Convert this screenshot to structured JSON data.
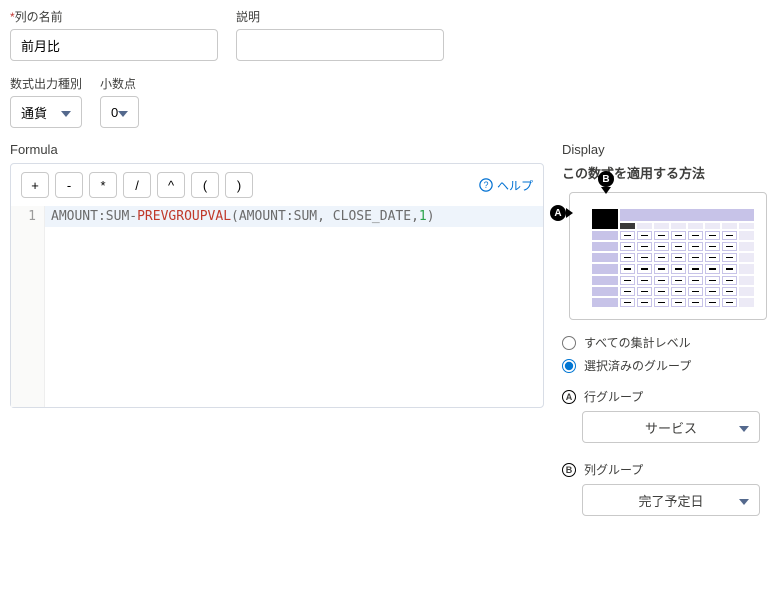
{
  "fields": {
    "colName": {
      "label": "列の名前",
      "required": true,
      "value": "前月比"
    },
    "description": {
      "label": "説明",
      "value": ""
    },
    "outputType": {
      "label": "数式出力種別",
      "value": "通貨"
    },
    "decimals": {
      "label": "小数点",
      "value": "0"
    }
  },
  "formula": {
    "section_label": "Formula",
    "operators": [
      "+",
      "-",
      "*",
      "/",
      "^",
      "(",
      ")"
    ],
    "help_label": "ヘルプ",
    "line_number": "1",
    "code": {
      "id1": "AMOUNT",
      "colon1": ":",
      "id2": "SUM",
      "dash": "-",
      "fn": "PREVGROUPVAL",
      "open": "(",
      "arg1a": "AMOUNT",
      "arg1colon": ":",
      "arg1b": "SUM",
      "comma1": ",",
      "space1": " ",
      "arg2": "CLOSE_DATE",
      "comma2": ",",
      "num": "1",
      "close": ")"
    }
  },
  "display": {
    "section_label": "Display",
    "title": "この数式を適用する方法",
    "marker_a": "A",
    "marker_b": "B",
    "radios": {
      "all_levels": "すべての集計レベル",
      "selected_groups": "選択済みのグループ",
      "selected": "selected_groups"
    },
    "row_group": {
      "marker": "A",
      "label": "行グループ",
      "value": "サービス"
    },
    "col_group": {
      "marker": "B",
      "label": "列グループ",
      "value": "完了予定日"
    }
  },
  "colors": {
    "help": "#0070d2",
    "grid_lav": "#c7c3e8",
    "grid_light": "#eceaf6"
  }
}
